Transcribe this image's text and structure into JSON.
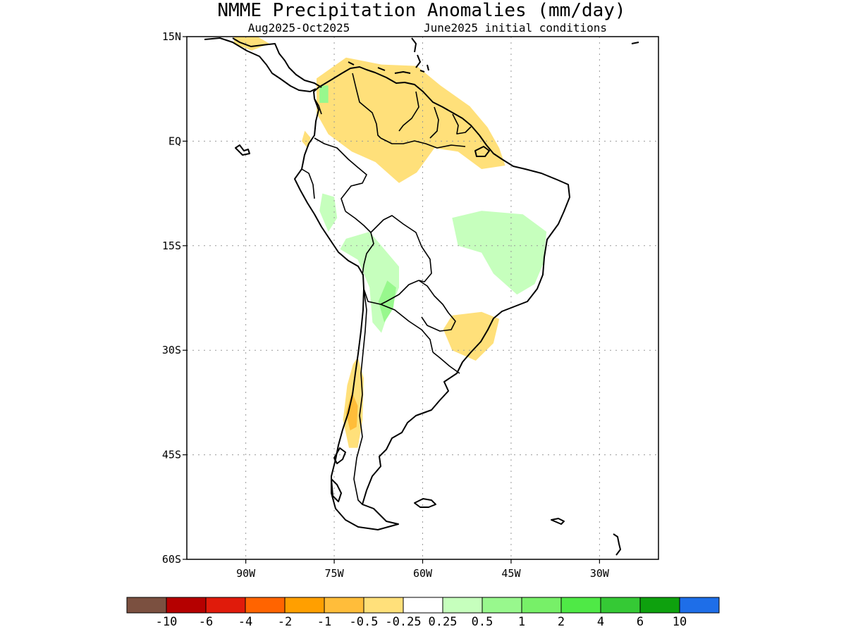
{
  "header": {
    "title": "NMME Precipitation Anomalies (mm/day)",
    "period": "Aug2025-Oct2025",
    "initial_conditions": "June2025 initial conditions"
  },
  "map": {
    "lon_range": [
      -100,
      -20
    ],
    "lat_range": [
      -60,
      15
    ],
    "lon_ticks": [
      {
        "value": -90,
        "label": "90W"
      },
      {
        "value": -75,
        "label": "75W"
      },
      {
        "value": -60,
        "label": "60W"
      },
      {
        "value": -45,
        "label": "45W"
      },
      {
        "value": -30,
        "label": "30W"
      }
    ],
    "lat_ticks": [
      {
        "value": 15,
        "label": "15N"
      },
      {
        "value": 0,
        "label": "EQ"
      },
      {
        "value": -15,
        "label": "15S"
      },
      {
        "value": -30,
        "label": "30S"
      },
      {
        "value": -45,
        "label": "45S"
      },
      {
        "value": -60,
        "label": "60S"
      }
    ],
    "grid": true
  },
  "colorbar": {
    "colors": [
      "#7b5040",
      "#b50000",
      "#e01b0b",
      "#ff6400",
      "#ff9f00",
      "#ffbd3a",
      "#ffe07a",
      "#ffffff",
      "#c6ffbd",
      "#98f88d",
      "#77f068",
      "#4fe946",
      "#35c935",
      "#0ea10e",
      "#1e6ee8"
    ],
    "labels": [
      "-10",
      "-6",
      "-4",
      "-2",
      "-1",
      "-0.5",
      "-0.25",
      "0.25",
      "0.5",
      "1",
      "2",
      "4",
      "6",
      "10"
    ]
  },
  "anomaly_regions": [
    {
      "name": "colombia-venezuela-dry",
      "category": "-0.5",
      "color": "#ffbd3a",
      "points": [
        [
          -77,
          9
        ],
        [
          -72,
          11
        ],
        [
          -66,
          10.5
        ],
        [
          -61,
          9
        ],
        [
          -59,
          6.5
        ],
        [
          -62,
          3
        ],
        [
          -66,
          2
        ],
        [
          -70,
          1.5
        ],
        [
          -74,
          2.5
        ],
        [
          -77,
          4.5
        ]
      ]
    },
    {
      "name": "amazon-mouth-dry",
      "category": "-0.5",
      "color": "#ffbd3a",
      "points": [
        [
          -60,
          5.5
        ],
        [
          -55,
          6
        ],
        [
          -52,
          5
        ],
        [
          -53,
          3
        ],
        [
          -57,
          2.5
        ],
        [
          -60,
          3.5
        ]
      ]
    },
    {
      "name": "north-south-america-dry",
      "category": "-0.25",
      "color": "#ffe07a",
      "points": [
        [
          -78,
          9
        ],
        [
          -73,
          12
        ],
        [
          -67,
          11
        ],
        [
          -61,
          10.8
        ],
        [
          -57,
          8
        ],
        [
          -52,
          5
        ],
        [
          -49,
          2
        ],
        [
          -47,
          -1
        ],
        [
          -46,
          -3.5
        ],
        [
          -50,
          -4
        ],
        [
          -54,
          -1.5
        ],
        [
          -58,
          -1
        ],
        [
          -61,
          -4.5
        ],
        [
          -64,
          -6
        ],
        [
          -68,
          -3
        ],
        [
          -72,
          -1.5
        ],
        [
          -76,
          1
        ],
        [
          -78,
          4
        ]
      ]
    },
    {
      "name": "ecuador-coast-dry",
      "category": "-0.25",
      "color": "#ffe07a",
      "points": [
        [
          -80,
          1.5
        ],
        [
          -79,
          0.5
        ],
        [
          -79.5,
          -1
        ],
        [
          -80.5,
          0
        ]
      ]
    },
    {
      "name": "central-america-dry",
      "category": "-0.25",
      "color": "#ffe07a",
      "points": [
        [
          -92,
          15
        ],
        [
          -88,
          15
        ],
        [
          -86,
          14
        ],
        [
          -89,
          13
        ],
        [
          -92,
          14
        ]
      ]
    },
    {
      "name": "eastern-brazil-wet",
      "category": "0.25",
      "color": "#c6ffbd",
      "points": [
        [
          -55,
          -11
        ],
        [
          -50,
          -10
        ],
        [
          -43,
          -10.5
        ],
        [
          -39,
          -13
        ],
        [
          -39.5,
          -17.5
        ],
        [
          -41,
          -20.5
        ],
        [
          -44,
          -22
        ],
        [
          -48,
          -19
        ],
        [
          -50,
          -16
        ],
        [
          -54,
          -15
        ]
      ]
    },
    {
      "name": "bolivia-andes-wet",
      "category": "0.25",
      "color": "#c6ffbd",
      "points": [
        [
          -73,
          -14
        ],
        [
          -69,
          -13
        ],
        [
          -66,
          -16
        ],
        [
          -64,
          -18
        ],
        [
          -64,
          -21
        ],
        [
          -66,
          -25
        ],
        [
          -67,
          -27.5
        ],
        [
          -68.5,
          -26
        ],
        [
          -69,
          -21
        ],
        [
          -71,
          -17
        ],
        [
          -74,
          -15.5
        ]
      ]
    },
    {
      "name": "peru-andes-wet",
      "category": "0.25",
      "color": "#c6ffbd",
      "points": [
        [
          -77,
          -7.5
        ],
        [
          -75,
          -8
        ],
        [
          -74.5,
          -11
        ],
        [
          -76,
          -13
        ],
        [
          -77.5,
          -10
        ]
      ]
    },
    {
      "name": "colombia-pacific-wet",
      "category": "0.5",
      "color": "#98f88d",
      "points": [
        [
          -77.5,
          8
        ],
        [
          -76,
          8
        ],
        [
          -76,
          5.5
        ],
        [
          -77.5,
          5.5
        ]
      ]
    },
    {
      "name": "argentina-andes-wet",
      "category": "0.5",
      "color": "#98f88d",
      "points": [
        [
          -66,
          -20
        ],
        [
          -64.5,
          -21
        ],
        [
          -65,
          -24
        ],
        [
          -66.5,
          -26
        ],
        [
          -67.5,
          -23
        ]
      ]
    },
    {
      "name": "southern-brazil-dry",
      "category": "-0.25",
      "color": "#ffe07a",
      "points": [
        [
          -55,
          -25
        ],
        [
          -50,
          -24.5
        ],
        [
          -47,
          -25.5
        ],
        [
          -48,
          -29
        ],
        [
          -51,
          -31.5
        ],
        [
          -55,
          -30
        ],
        [
          -56.5,
          -27
        ]
      ]
    },
    {
      "name": "chile-central-dry",
      "category": "-0.25",
      "color": "#ffe07a",
      "points": [
        [
          -71,
          -31
        ],
        [
          -70,
          -34
        ],
        [
          -70.2,
          -40
        ],
        [
          -71,
          -44
        ],
        [
          -72.5,
          -44
        ],
        [
          -73.5,
          -40
        ],
        [
          -72.8,
          -35
        ],
        [
          -71.8,
          -32
        ]
      ]
    },
    {
      "name": "chile-central-dry-core",
      "category": "-0.5",
      "color": "#ffbd3a",
      "points": [
        [
          -72,
          -36
        ],
        [
          -71,
          -38
        ],
        [
          -71.2,
          -41
        ],
        [
          -72.3,
          -41.5
        ],
        [
          -73,
          -39
        ]
      ]
    }
  ]
}
